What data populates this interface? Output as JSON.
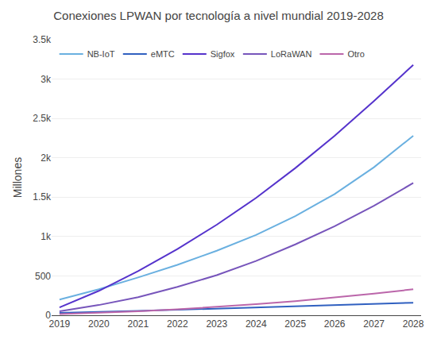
{
  "chart_data": {
    "type": "line",
    "title": "Conexiones LPWAN por tecnología a nivel mundial 2019-2028",
    "x": [
      2019,
      2020,
      2021,
      2022,
      2023,
      2024,
      2025,
      2026,
      2027,
      2028
    ],
    "series": [
      {
        "name": "NB-IoT",
        "color": "#6ab0e0",
        "values": [
          200,
          330,
          480,
          640,
          820,
          1020,
          1260,
          1540,
          1880,
          2280
        ]
      },
      {
        "name": "eMTC",
        "color": "#3060c0",
        "values": [
          30,
          40,
          55,
          70,
          85,
          100,
          115,
          130,
          145,
          160
        ]
      },
      {
        "name": "Sigfox",
        "color": "#5533cc",
        "values": [
          100,
          310,
          560,
          840,
          1150,
          1490,
          1870,
          2280,
          2720,
          3180
        ]
      },
      {
        "name": "LoRaWAN",
        "color": "#7755bb",
        "values": [
          50,
          130,
          230,
          360,
          510,
          690,
          900,
          1130,
          1390,
          1680
        ]
      },
      {
        "name": "Otro",
        "color": "#bb66aa",
        "values": [
          15,
          30,
          50,
          75,
          105,
          140,
          180,
          225,
          275,
          330
        ]
      }
    ],
    "ylabel": "Millones",
    "xlim": [
      2018.8,
      2028.2
    ],
    "xticks": [
      2019,
      2020,
      2021,
      2022,
      2023,
      2024,
      2025,
      2026,
      2027,
      2028
    ],
    "ylim": [
      0,
      3500
    ],
    "yticks": [
      0,
      500,
      {
        "value": 1000,
        "label": "1k"
      },
      {
        "value": 1500,
        "label": "1.5k"
      },
      {
        "value": 2000,
        "label": "2k"
      },
      {
        "value": 2500,
        "label": "2.5k"
      },
      {
        "value": 3000,
        "label": "3k"
      },
      {
        "value": 3500,
        "label": "3.5k"
      }
    ],
    "grid": true,
    "legend": "upper left"
  }
}
